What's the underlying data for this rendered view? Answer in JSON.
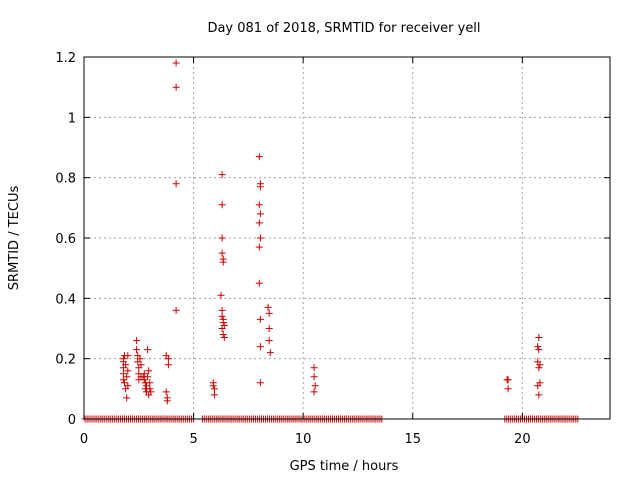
{
  "chart_data": {
    "type": "scatter",
    "title": "Day 081 of 2018, SRMTID for receiver yell",
    "xlabel": "GPS time / hours",
    "ylabel": "SRMTID / TECUs",
    "xlim": [
      0,
      24
    ],
    "ylim": [
      0,
      1.2
    ],
    "xticks": [
      0,
      5,
      10,
      15,
      20
    ],
    "yticks": [
      0,
      0.2,
      0.4,
      0.6,
      0.8,
      1.0,
      1.2
    ],
    "ytick_labels": [
      "0",
      "0.2",
      "0.4",
      "0.6",
      "0.8",
      "1",
      "1.2"
    ],
    "grid": true,
    "marker": "+",
    "color": "#cc0000",
    "zero_segments": [
      [
        0.05,
        5.0
      ],
      [
        5.4,
        13.6
      ],
      [
        19.2,
        22.6
      ]
    ],
    "series": [
      {
        "name": "SRMTID",
        "points": [
          [
            1.8,
            0.2
          ],
          [
            1.8,
            0.19
          ],
          [
            1.8,
            0.17
          ],
          [
            1.8,
            0.15
          ],
          [
            1.8,
            0.13
          ],
          [
            1.85,
            0.21
          ],
          [
            1.85,
            0.12
          ],
          [
            1.9,
            0.1
          ],
          [
            1.9,
            0.18
          ],
          [
            1.95,
            0.07
          ],
          [
            1.95,
            0.14
          ],
          [
            2.0,
            0.11
          ],
          [
            2.0,
            0.16
          ],
          [
            2.0,
            0.21
          ],
          [
            2.4,
            0.26
          ],
          [
            2.4,
            0.23
          ],
          [
            2.45,
            0.21
          ],
          [
            2.45,
            0.19
          ],
          [
            2.5,
            0.17
          ],
          [
            2.5,
            0.15
          ],
          [
            2.5,
            0.13
          ],
          [
            2.55,
            0.2
          ],
          [
            2.6,
            0.18
          ],
          [
            2.6,
            0.14
          ],
          [
            2.75,
            0.15
          ],
          [
            2.75,
            0.13
          ],
          [
            2.8,
            0.12
          ],
          [
            2.8,
            0.1
          ],
          [
            2.85,
            0.09
          ],
          [
            2.85,
            0.11
          ],
          [
            2.9,
            0.23
          ],
          [
            2.9,
            0.14
          ],
          [
            2.95,
            0.16
          ],
          [
            2.95,
            0.08
          ],
          [
            3.0,
            0.1
          ],
          [
            3.0,
            0.12
          ],
          [
            3.05,
            0.09
          ],
          [
            2.7,
            0.14
          ],
          [
            3.75,
            0.21
          ],
          [
            3.75,
            0.09
          ],
          [
            3.8,
            0.07
          ],
          [
            3.8,
            0.06
          ],
          [
            3.85,
            0.2
          ],
          [
            3.85,
            0.18
          ],
          [
            4.2,
            1.18
          ],
          [
            4.2,
            1.1
          ],
          [
            4.2,
            0.78
          ],
          [
            4.2,
            0.36
          ],
          [
            5.9,
            0.12
          ],
          [
            5.9,
            0.11
          ],
          [
            5.95,
            0.1
          ],
          [
            5.95,
            0.08
          ],
          [
            6.25,
            0.41
          ],
          [
            6.3,
            0.81
          ],
          [
            6.3,
            0.71
          ],
          [
            6.3,
            0.6
          ],
          [
            6.3,
            0.55
          ],
          [
            6.35,
            0.53
          ],
          [
            6.35,
            0.52
          ],
          [
            6.3,
            0.36
          ],
          [
            6.3,
            0.34
          ],
          [
            6.35,
            0.33
          ],
          [
            6.35,
            0.32
          ],
          [
            6.4,
            0.31
          ],
          [
            6.3,
            0.3
          ],
          [
            6.35,
            0.28
          ],
          [
            6.4,
            0.27
          ],
          [
            8.0,
            0.87
          ],
          [
            8.05,
            0.78
          ],
          [
            8.05,
            0.77
          ],
          [
            8.0,
            0.71
          ],
          [
            8.05,
            0.68
          ],
          [
            8.0,
            0.65
          ],
          [
            8.05,
            0.6
          ],
          [
            8.0,
            0.57
          ],
          [
            8.0,
            0.45
          ],
          [
            8.05,
            0.33
          ],
          [
            8.05,
            0.24
          ],
          [
            8.05,
            0.12
          ],
          [
            8.4,
            0.37
          ],
          [
            8.45,
            0.35
          ],
          [
            8.45,
            0.3
          ],
          [
            8.45,
            0.26
          ],
          [
            8.5,
            0.22
          ],
          [
            10.5,
            0.17
          ],
          [
            10.5,
            0.14
          ],
          [
            10.55,
            0.11
          ],
          [
            10.5,
            0.09
          ],
          [
            19.3,
            0.13
          ],
          [
            19.35,
            0.13
          ],
          [
            19.35,
            0.1
          ],
          [
            20.7,
            0.24
          ],
          [
            20.75,
            0.27
          ],
          [
            20.75,
            0.23
          ],
          [
            20.7,
            0.19
          ],
          [
            20.8,
            0.18
          ],
          [
            20.75,
            0.17
          ],
          [
            20.8,
            0.12
          ],
          [
            20.7,
            0.11
          ],
          [
            20.75,
            0.08
          ]
        ]
      }
    ]
  }
}
